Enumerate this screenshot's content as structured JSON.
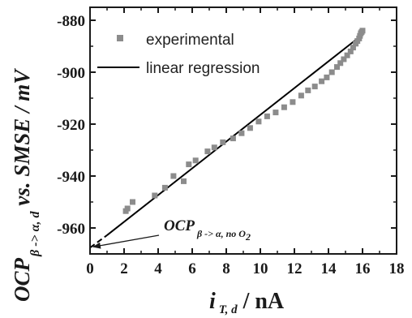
{
  "chart_data": {
    "type": "scatter",
    "xlim": [
      0,
      18
    ],
    "ylim": [
      -970,
      -875
    ],
    "x_ticks": [
      "0",
      "2",
      "4",
      "6",
      "8",
      "10",
      "12",
      "14",
      "16",
      "18"
    ],
    "y_ticks": [
      "-880",
      "-900",
      "-920",
      "-940",
      "-960"
    ],
    "grid": false,
    "legend_position": "top-left",
    "series": [
      {
        "name": "experimental",
        "marker": "square",
        "color": "#8c8c8c",
        "x": [
          2.1,
          2.2,
          2.5,
          3.8,
          4.4,
          4.9,
          5.5,
          5.8,
          6.2,
          6.9,
          7.3,
          7.8,
          8.4,
          8.9,
          9.4,
          9.9,
          10.4,
          10.9,
          11.4,
          11.9,
          12.4,
          12.8,
          13.2,
          13.6,
          13.9,
          14.2,
          14.5,
          14.7,
          14.9,
          15.1,
          15.3,
          15.45,
          15.6,
          15.7,
          15.8,
          15.85,
          15.9,
          15.95,
          16.0
        ],
        "y": [
          -953.5,
          -952.5,
          -950.0,
          -947.5,
          -944.5,
          -940.0,
          -942.0,
          -935.5,
          -934.0,
          -930.5,
          -929.0,
          -927.0,
          -925.5,
          -923.5,
          -921.5,
          -919.0,
          -917.0,
          -915.5,
          -913.5,
          -911.5,
          -909.0,
          -907.0,
          -905.5,
          -903.5,
          -902.0,
          -900.0,
          -898.0,
          -896.5,
          -895.0,
          -893.5,
          -892.0,
          -890.5,
          -889.0,
          -888.0,
          -887.0,
          -886.0,
          -885.0,
          -884.5,
          -884.0
        ]
      },
      {
        "name": "linear regression",
        "style": "solid",
        "color": "#000000",
        "x": [
          1.0,
          16.0
        ],
        "y": [
          -962.8,
          -885.5
        ]
      },
      {
        "style": "dashed",
        "color": "#000000",
        "x": [
          0.0,
          1.0
        ],
        "y": [
          -967.6,
          -962.8
        ]
      }
    ],
    "legend": [
      "experimental",
      "linear regression"
    ],
    "xlabel": {
      "main": "i",
      "sub": "T, d",
      "unit": " / nA"
    },
    "ylabel": {
      "main": "OCP",
      "sub": "β -> α, d",
      "rest": " vs. SMSE / mV"
    },
    "annotation": {
      "main": "OCP",
      "sub": "β -> α, no O",
      "sub2": "2",
      "point": [
        0.0,
        -967.6
      ]
    }
  }
}
